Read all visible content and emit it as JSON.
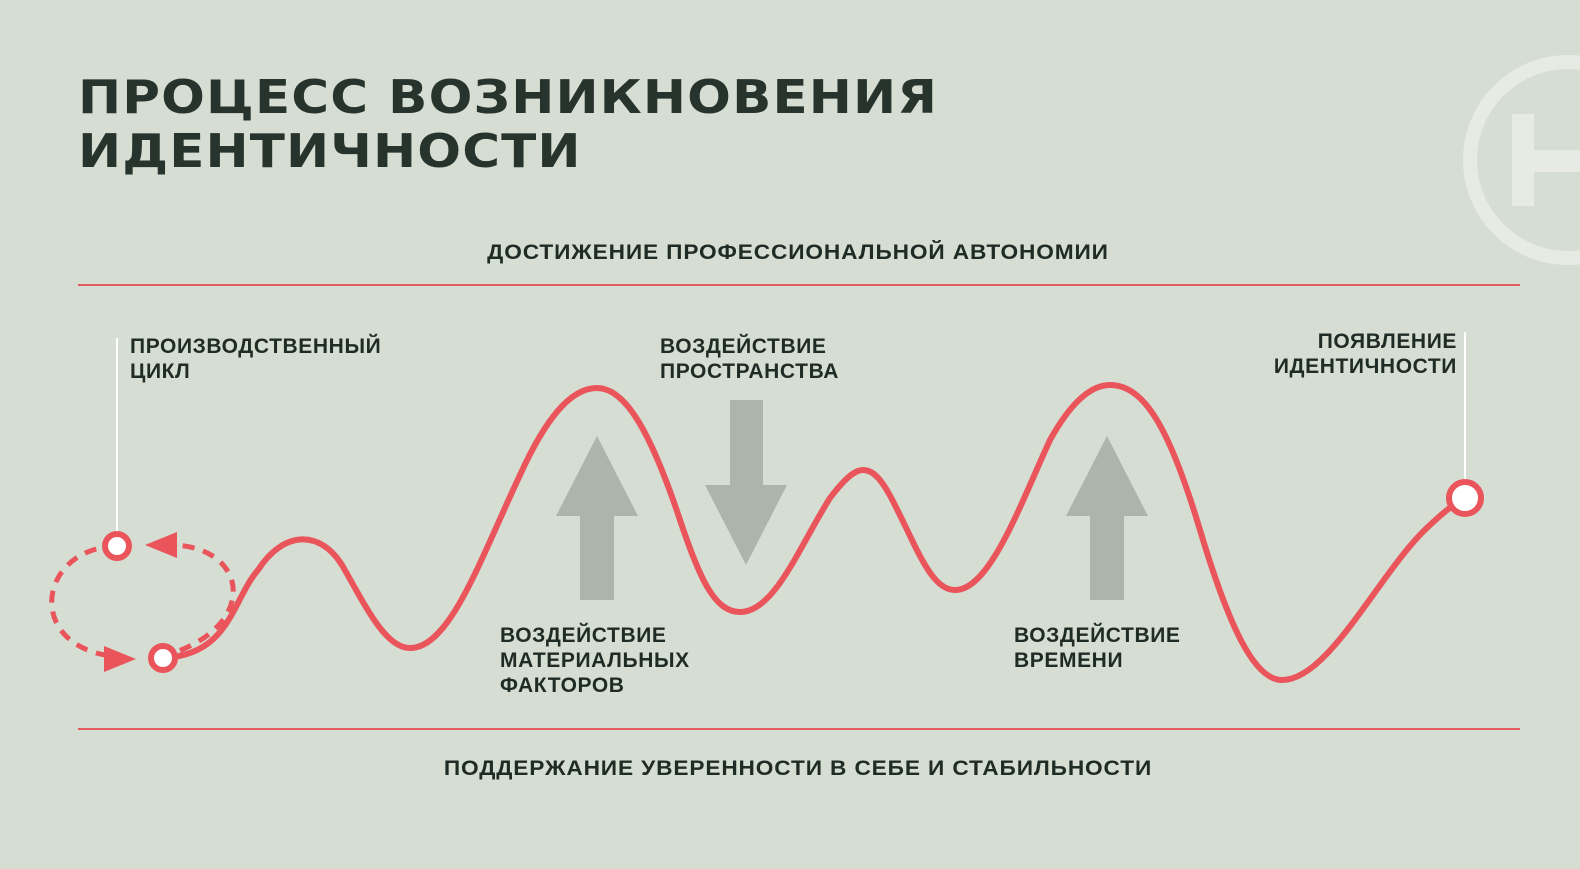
{
  "title": "ПРОЦЕСС ВОЗНИКНОВЕНИЯ\nИДЕНТИЧНОСТИ",
  "top_band_label": "ДОСТИЖЕНИЕ ПРОФЕССИОНАЛЬНОЙ АВТОНОМИИ",
  "bottom_band_label": "ПОДДЕРЖАНИЕ УВЕРЕННОСТИ В СЕБЕ И СТАБИЛЬНОСТИ",
  "labels": {
    "production_cycle": "ПРОИЗВОДСТВЕННЫЙ\nЦИКЛ",
    "space_impact": "ВОЗДЕЙСТВИЕ\nПРОСТРАНСТВА",
    "identity_emergence": "ПОЯВЛЕНИЕ\nИДЕНТИЧНОСТИ",
    "material_impact": "ВОЗДЕЙСТВИЕ\nМАТЕРИАЛЬНЫХ\nФАКТОРОВ",
    "time_impact": "ВОЗДЕЙСТВИЕ\nВРЕМЕНИ"
  },
  "arrows": [
    {
      "id": "material",
      "direction": "up"
    },
    {
      "id": "space",
      "direction": "down"
    },
    {
      "id": "time",
      "direction": "up"
    }
  ],
  "colors": {
    "background": "#d6ddd3",
    "accent": "#e9555b",
    "rule": "#e55a5e",
    "arrow": "#adb5ab",
    "text": "#1f2b25",
    "logo": "#e7ebe4"
  },
  "icons": {
    "logo": "brand-logo-icon"
  }
}
